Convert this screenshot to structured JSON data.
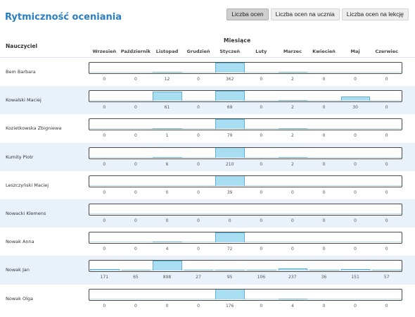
{
  "page_title": "Rytmiczność oceniania",
  "buttons": [
    {
      "label": "Liczba ocen",
      "active": true
    },
    {
      "label": "Liczba ocen na ucznia",
      "active": false
    },
    {
      "label": "Liczba ocen na lekcję",
      "active": false
    }
  ],
  "table": {
    "teacher_header": "Nauczyciel",
    "months_header": "Miesiące",
    "months": [
      "Wrzesień",
      "Październik",
      "Listopad",
      "Grudzień",
      "Styczeń",
      "Luty",
      "Marzec",
      "Kwiecień",
      "Maj",
      "Czerwiec"
    ]
  },
  "colors": {
    "title": "#2a7fc1",
    "bar_fill": "#a9def2",
    "bar_border": "#5fb4d6",
    "row_alt_bg": "#e9f2fb"
  },
  "teachers": [
    {
      "name": "Bem Barbara",
      "counts": [
        0,
        0,
        12,
        0,
        362,
        0,
        2,
        0,
        0,
        0
      ]
    },
    {
      "name": "Kowalski Maciej",
      "counts": [
        0,
        0,
        61,
        0,
        69,
        0,
        2,
        0,
        30,
        0
      ]
    },
    {
      "name": "Kozietkowska Zbigniewa",
      "counts": [
        0,
        0,
        1,
        0,
        79,
        0,
        2,
        0,
        0,
        0
      ]
    },
    {
      "name": "Kumity Piotr",
      "counts": [
        0,
        0,
        6,
        0,
        210,
        0,
        2,
        0,
        0,
        0
      ]
    },
    {
      "name": "Leszczyński Maciej",
      "counts": [
        0,
        0,
        0,
        0,
        39,
        0,
        0,
        0,
        0,
        0
      ]
    },
    {
      "name": "Nowacki Klemens",
      "counts": [
        0,
        0,
        0,
        0,
        0,
        0,
        0,
        0,
        0,
        0
      ]
    },
    {
      "name": "Nowak Anna",
      "counts": [
        0,
        0,
        4,
        0,
        72,
        0,
        0,
        0,
        0,
        0
      ]
    },
    {
      "name": "Nowak Jan",
      "counts": [
        171,
        65,
        898,
        27,
        95,
        106,
        237,
        36,
        151,
        57
      ]
    },
    {
      "name": "Nowak Olga",
      "counts": [
        0,
        0,
        0,
        0,
        176,
        0,
        4,
        0,
        0,
        0
      ]
    }
  ]
}
